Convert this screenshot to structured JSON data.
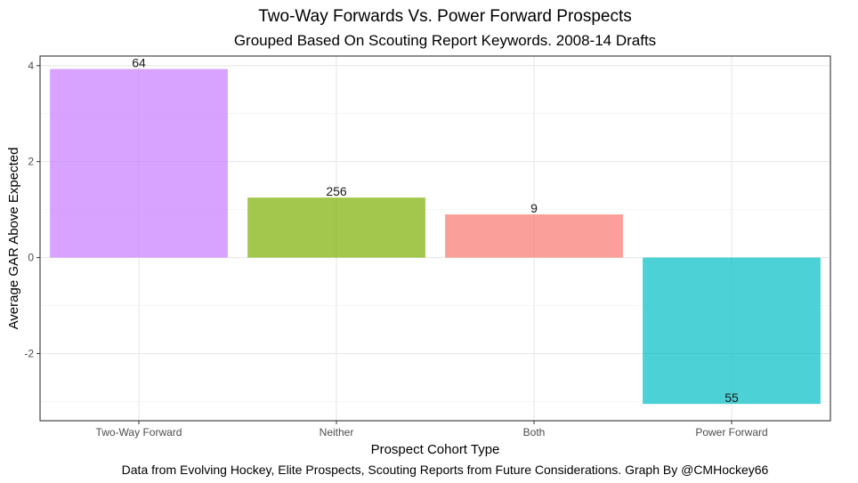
{
  "chart_data": {
    "type": "bar",
    "title": "Two-Way Forwards Vs. Power Forward Prospects",
    "subtitle": "Grouped Based On Scouting Report Keywords. 2008-14 Drafts",
    "xlabel": "Prospect Cohort Type",
    "ylabel": "Average GAR Above Expected",
    "caption": "Data from Evolving Hockey, Elite Prospects, Scouting Reports from Future Considerations. Graph By @CMHockey66",
    "categories": [
      "Two-Way Forward",
      "Neither",
      "Both",
      "Power Forward"
    ],
    "values": [
      3.93,
      1.25,
      0.9,
      -3.05
    ],
    "labels": [
      "64",
      "256",
      "9",
      "55"
    ],
    "colors": [
      "#C77CFF",
      "#7CAE00",
      "#F8766D",
      "#00BFC4"
    ],
    "ylim": [
      -3.4,
      4.2
    ],
    "yticks": [
      -2,
      0,
      2,
      4
    ],
    "grid": true,
    "legend": "none"
  }
}
